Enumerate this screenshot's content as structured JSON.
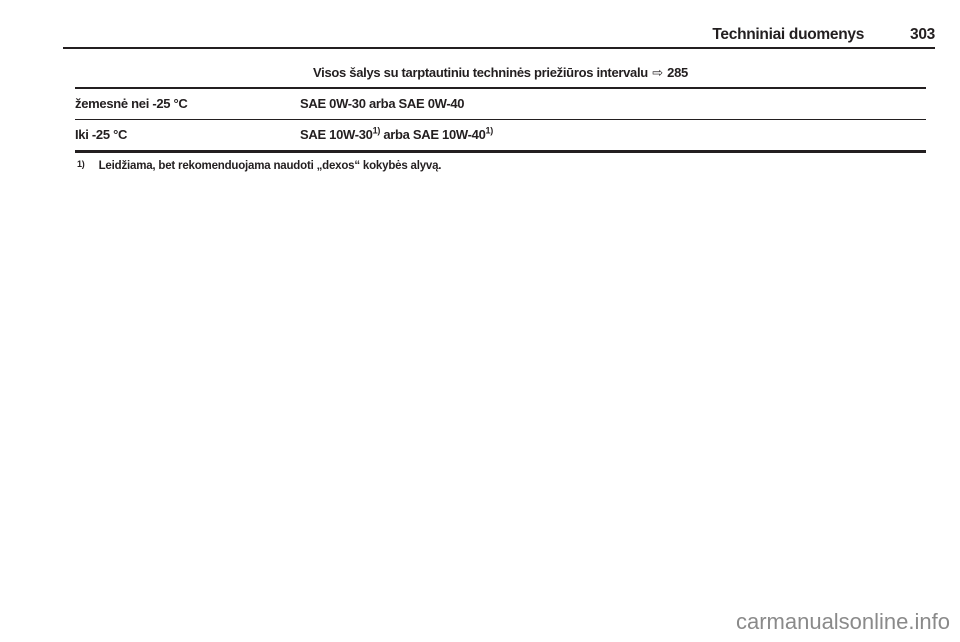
{
  "header": {
    "title": "Techniniai duomenys",
    "page_number": "303"
  },
  "table": {
    "caption": {
      "text": "Visos šalys su tarptautiniu techninės priežiūros intervalu",
      "ref_arrow": "⇨",
      "ref_page": "285"
    },
    "rows": [
      {
        "label": "žemesnė nei -25 °C",
        "value": "SAE 0W-30 arba SAE 0W-40"
      },
      {
        "label": "Iki -25 °C",
        "value_part1": "SAE 10W-30",
        "value_sup1": "1)",
        "value_part2": " arba SAE 10W-40",
        "value_sup2": "1)"
      }
    ]
  },
  "footnote": {
    "marker": "1)",
    "text": "Leidžiama, bet rekomenduojama naudoti „dexos“ kokybės alyvą."
  },
  "watermark": "carmanualsonline.info",
  "colors": {
    "text": "#231f20",
    "watermark": "#8a8a8a"
  }
}
